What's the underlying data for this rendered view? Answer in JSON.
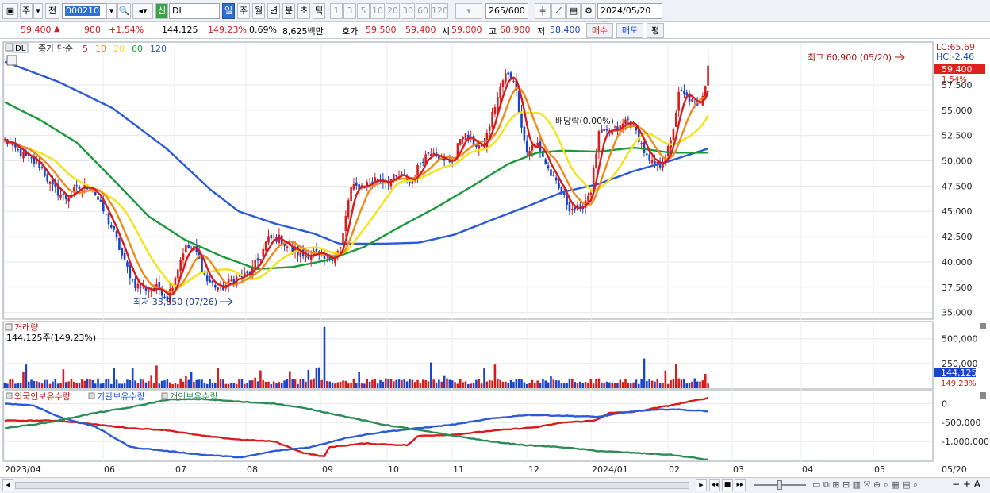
{
  "toolbar": {
    "market_tag": "주",
    "prev_tag": "전",
    "code": "000210",
    "new_tag": "신",
    "stock_name": "DL",
    "periods": [
      "일",
      "주",
      "월",
      "년",
      "분",
      "초",
      "틱"
    ],
    "active_period": "일",
    "intervals": [
      "1",
      "3",
      "5",
      "10",
      "20",
      "30",
      "60",
      "120"
    ],
    "count": "265",
    "total": "/600",
    "date": "2024/05/20"
  },
  "quote": {
    "price": "59,400",
    "arrow": "▲",
    "change": "900",
    "change_pct": "+1.54%",
    "volume": "144,125",
    "volume_ratio": "149.23%",
    "turnover": "0.69%",
    "amount": "8,625백만",
    "ask_label": "호가",
    "ask1": "59,500",
    "ask2": "59,400",
    "open_label": "시",
    "open": "59,000",
    "high_label": "고",
    "high": "60,900",
    "low_label": "저",
    "low": "58,400",
    "buy_label": "매수",
    "sell_label": "매도",
    "eval_label": "평"
  },
  "price_panel": {
    "title_code": "DL",
    "title": "종가 단순",
    "ma_labels": [
      {
        "label": "5",
        "color": "#e0201c"
      },
      {
        "label": "10",
        "color": "#f28a1a"
      },
      {
        "label": "20",
        "color": "#f2e21a"
      },
      {
        "label": "60",
        "color": "#1a9a3a"
      },
      {
        "label": "120",
        "color": "#2a5ad8"
      }
    ],
    "lc": "LC:65.69",
    "hc": "HC:-2.46",
    "current_price": "59,400",
    "current_pct": "1.54%",
    "high_note": "최고 60,900 (05/20)",
    "low_note": "최저 35,850 (07/26)",
    "dividend_note": "배당락(0.00%)",
    "y_ticks": [
      "57,500",
      "55,000",
      "52,500",
      "50,000",
      "47,500",
      "45,000",
      "42,500",
      "40,000",
      "37,500",
      "35,000"
    ]
  },
  "volume_panel": {
    "title": "거래량",
    "value": "144,125주(149.23%)",
    "y_ticks": [
      "500,000",
      "250,000"
    ],
    "current": "144,125",
    "current_pct": "149.23%"
  },
  "holdings_panel": {
    "series": [
      {
        "label": "외국인보유수량",
        "color": "#d11d1d"
      },
      {
        "label": "기관보유수량",
        "color": "#2a5ad8"
      },
      {
        "label": "개인보유수량",
        "color": "#2e8b57"
      }
    ],
    "y_ticks": [
      "0",
      "-500,000",
      "-1,000,000"
    ]
  },
  "x_axis": [
    "2023/04",
    "06",
    "07",
    "08",
    "09",
    "10",
    "11",
    "12",
    "2024/01",
    "02",
    "03",
    "04",
    "05"
  ],
  "x_end_label": "05/20",
  "chart_data": {
    "type": "candlestick",
    "price_range": [
      34500,
      61500
    ],
    "ma_periods": [
      5,
      10,
      20,
      60,
      120
    ],
    "highest": {
      "value": 60900,
      "date": "05/20"
    },
    "lowest": {
      "value": 35850,
      "date": "07/26"
    },
    "close_path": [
      {
        "m": 0,
        "v": 52000
      },
      {
        "m": 0.6,
        "v": 50300
      },
      {
        "m": 1.0,
        "v": 49500
      },
      {
        "m": 1.3,
        "v": 47400
      },
      {
        "m": 1.7,
        "v": 46300
      },
      {
        "m": 2.0,
        "v": 47200
      },
      {
        "m": 2.4,
        "v": 47600
      },
      {
        "m": 2.7,
        "v": 45300
      },
      {
        "m": 3.0,
        "v": 43200
      },
      {
        "m": 3.3,
        "v": 40200
      },
      {
        "m": 3.6,
        "v": 37800
      },
      {
        "m": 4.0,
        "v": 37200
      },
      {
        "m": 4.3,
        "v": 37500
      },
      {
        "m": 4.5,
        "v": 36300
      },
      {
        "m": 4.7,
        "v": 38200
      },
      {
        "m": 5.0,
        "v": 41500
      },
      {
        "m": 5.3,
        "v": 41200
      },
      {
        "m": 5.6,
        "v": 38200
      },
      {
        "m": 6.0,
        "v": 37300
      },
      {
        "m": 6.4,
        "v": 38400
      },
      {
        "m": 6.8,
        "v": 38800
      },
      {
        "m": 7.1,
        "v": 40500
      },
      {
        "m": 7.3,
        "v": 42200
      },
      {
        "m": 7.6,
        "v": 42400
      },
      {
        "m": 7.9,
        "v": 41400
      },
      {
        "m": 8.3,
        "v": 40600
      },
      {
        "m": 8.6,
        "v": 40900
      },
      {
        "m": 8.9,
        "v": 40200
      },
      {
        "m": 9.1,
        "v": 40500
      },
      {
        "m": 9.35,
        "v": 41400
      },
      {
        "m": 9.6,
        "v": 47200
      },
      {
        "m": 10.0,
        "v": 47600
      },
      {
        "m": 10.3,
        "v": 48200
      },
      {
        "m": 10.6,
        "v": 48000
      },
      {
        "m": 11.0,
        "v": 48500
      },
      {
        "m": 11.3,
        "v": 47800
      },
      {
        "m": 11.6,
        "v": 50200
      },
      {
        "m": 11.9,
        "v": 51200
      },
      {
        "m": 12.2,
        "v": 49800
      },
      {
        "m": 12.5,
        "v": 50200
      },
      {
        "m": 12.7,
        "v": 52800
      },
      {
        "m": 13.0,
        "v": 51800
      },
      {
        "m": 13.3,
        "v": 51200
      },
      {
        "m": 13.6,
        "v": 55200
      },
      {
        "m": 13.9,
        "v": 58500
      },
      {
        "m": 14.15,
        "v": 58200
      },
      {
        "m": 14.3,
        "v": 55000
      },
      {
        "m": 14.5,
        "v": 50800
      },
      {
        "m": 14.8,
        "v": 51800
      },
      {
        "m": 15.1,
        "v": 49200
      },
      {
        "m": 15.4,
        "v": 47200
      },
      {
        "m": 15.7,
        "v": 45400
      },
      {
        "m": 16.0,
        "v": 45200
      },
      {
        "m": 16.3,
        "v": 47200
      },
      {
        "m": 16.5,
        "v": 52500
      },
      {
        "m": 16.8,
        "v": 52800
      },
      {
        "m": 17.1,
        "v": 53200
      },
      {
        "m": 17.3,
        "v": 54200
      },
      {
        "m": 17.6,
        "v": 52500
      },
      {
        "m": 17.9,
        "v": 49800
      },
      {
        "m": 18.2,
        "v": 49500
      },
      {
        "m": 18.5,
        "v": 51500
      },
      {
        "m": 18.75,
        "v": 56800
      },
      {
        "m": 19.0,
        "v": 56200
      },
      {
        "m": 19.25,
        "v": 55200
      },
      {
        "m": 19.45,
        "v": 57200
      },
      {
        "m": 19.55,
        "v": 59400
      }
    ],
    "ma120_path": [
      {
        "m": 0,
        "v": 59800
      },
      {
        "m": 1.5,
        "v": 57800
      },
      {
        "m": 3.0,
        "v": 55200
      },
      {
        "m": 4.5,
        "v": 51200
      },
      {
        "m": 5.7,
        "v": 47200
      },
      {
        "m": 6.5,
        "v": 45000
      },
      {
        "m": 7.5,
        "v": 43800
      },
      {
        "m": 8.6,
        "v": 42800
      },
      {
        "m": 9.3,
        "v": 41800
      },
      {
        "m": 10.5,
        "v": 41800
      },
      {
        "m": 11.5,
        "v": 41900
      },
      {
        "m": 12.5,
        "v": 42700
      },
      {
        "m": 13.5,
        "v": 44100
      },
      {
        "m": 14.6,
        "v": 45600
      },
      {
        "m": 15.5,
        "v": 46900
      },
      {
        "m": 16.5,
        "v": 47700
      },
      {
        "m": 17.5,
        "v": 49000
      },
      {
        "m": 18.5,
        "v": 50000
      },
      {
        "m": 19.55,
        "v": 51200
      }
    ],
    "ma60_path": [
      {
        "m": 0,
        "v": 55800
      },
      {
        "m": 1.0,
        "v": 54000
      },
      {
        "m": 2.0,
        "v": 51800
      },
      {
        "m": 3.0,
        "v": 48200
      },
      {
        "m": 4.0,
        "v": 44500
      },
      {
        "m": 5.0,
        "v": 42200
      },
      {
        "m": 6.0,
        "v": 40600
      },
      {
        "m": 7.0,
        "v": 39300
      },
      {
        "m": 8.0,
        "v": 39500
      },
      {
        "m": 9.0,
        "v": 40200
      },
      {
        "m": 10.0,
        "v": 41500
      },
      {
        "m": 11.0,
        "v": 43500
      },
      {
        "m": 12.0,
        "v": 45400
      },
      {
        "m": 13.0,
        "v": 47500
      },
      {
        "m": 14.0,
        "v": 49700
      },
      {
        "m": 14.8,
        "v": 50800
      },
      {
        "m": 15.5,
        "v": 51000
      },
      {
        "m": 16.5,
        "v": 50900
      },
      {
        "m": 17.5,
        "v": 51300
      },
      {
        "m": 18.5,
        "v": 50800
      },
      {
        "m": 19.55,
        "v": 50800
      }
    ],
    "volume_range": [
      0,
      650000
    ],
    "holdings_range": [
      -1500000,
      300000
    ],
    "foreign_path": [
      {
        "m": 0,
        "v": -450000
      },
      {
        "m": 1.5,
        "v": -450000
      },
      {
        "m": 2.5,
        "v": -550000
      },
      {
        "m": 3.5,
        "v": -650000
      },
      {
        "m": 4.5,
        "v": -700000
      },
      {
        "m": 5.5,
        "v": -850000
      },
      {
        "m": 6.5,
        "v": -950000
      },
      {
        "m": 7.5,
        "v": -1000000
      },
      {
        "m": 8.3,
        "v": -1300000
      },
      {
        "m": 8.9,
        "v": -1400000
      },
      {
        "m": 9.0,
        "v": -1150000
      },
      {
        "m": 10.0,
        "v": -1050000
      },
      {
        "m": 11.2,
        "v": -1100000
      },
      {
        "m": 11.5,
        "v": -850000
      },
      {
        "m": 12.5,
        "v": -820000
      },
      {
        "m": 13.5,
        "v": -720000
      },
      {
        "m": 14.8,
        "v": -620000
      },
      {
        "m": 15.5,
        "v": -500000
      },
      {
        "m": 16.4,
        "v": -450000
      },
      {
        "m": 16.8,
        "v": -250000
      },
      {
        "m": 17.5,
        "v": -220000
      },
      {
        "m": 18.5,
        "v": -50000
      },
      {
        "m": 19.55,
        "v": 150000
      }
    ],
    "institution_path": [
      {
        "m": 0,
        "v": 0
      },
      {
        "m": 0.8,
        "v": -50000
      },
      {
        "m": 1.5,
        "v": -350000
      },
      {
        "m": 2.5,
        "v": -600000
      },
      {
        "m": 3.5,
        "v": -1150000
      },
      {
        "m": 4.5,
        "v": -1250000
      },
      {
        "m": 5.5,
        "v": -1350000
      },
      {
        "m": 6.6,
        "v": -1420000
      },
      {
        "m": 7.5,
        "v": -1250000
      },
      {
        "m": 8.5,
        "v": -1150000
      },
      {
        "m": 9.5,
        "v": -900000
      },
      {
        "m": 10.5,
        "v": -750000
      },
      {
        "m": 11.5,
        "v": -650000
      },
      {
        "m": 12.5,
        "v": -550000
      },
      {
        "m": 13.5,
        "v": -400000
      },
      {
        "m": 14.5,
        "v": -300000
      },
      {
        "m": 15.5,
        "v": -320000
      },
      {
        "m": 16.5,
        "v": -350000
      },
      {
        "m": 17.5,
        "v": -200000
      },
      {
        "m": 18.5,
        "v": -150000
      },
      {
        "m": 19.55,
        "v": -200000
      }
    ],
    "individual_path": [
      {
        "m": 0,
        "v": -650000
      },
      {
        "m": 1.2,
        "v": -500000
      },
      {
        "m": 2.5,
        "v": -250000
      },
      {
        "m": 3.5,
        "v": -100000
      },
      {
        "m": 4.5,
        "v": 100000
      },
      {
        "m": 5.5,
        "v": 120000
      },
      {
        "m": 6.5,
        "v": 50000
      },
      {
        "m": 7.5,
        "v": 0
      },
      {
        "m": 8.5,
        "v": -150000
      },
      {
        "m": 9.5,
        "v": -350000
      },
      {
        "m": 10.5,
        "v": -550000
      },
      {
        "m": 11.5,
        "v": -700000
      },
      {
        "m": 12.5,
        "v": -850000
      },
      {
        "m": 13.5,
        "v": -1000000
      },
      {
        "m": 14.5,
        "v": -1100000
      },
      {
        "m": 15.5,
        "v": -1150000
      },
      {
        "m": 16.5,
        "v": -1250000
      },
      {
        "m": 17.5,
        "v": -1300000
      },
      {
        "m": 18.5,
        "v": -1350000
      },
      {
        "m": 19.55,
        "v": -1480000
      }
    ]
  }
}
